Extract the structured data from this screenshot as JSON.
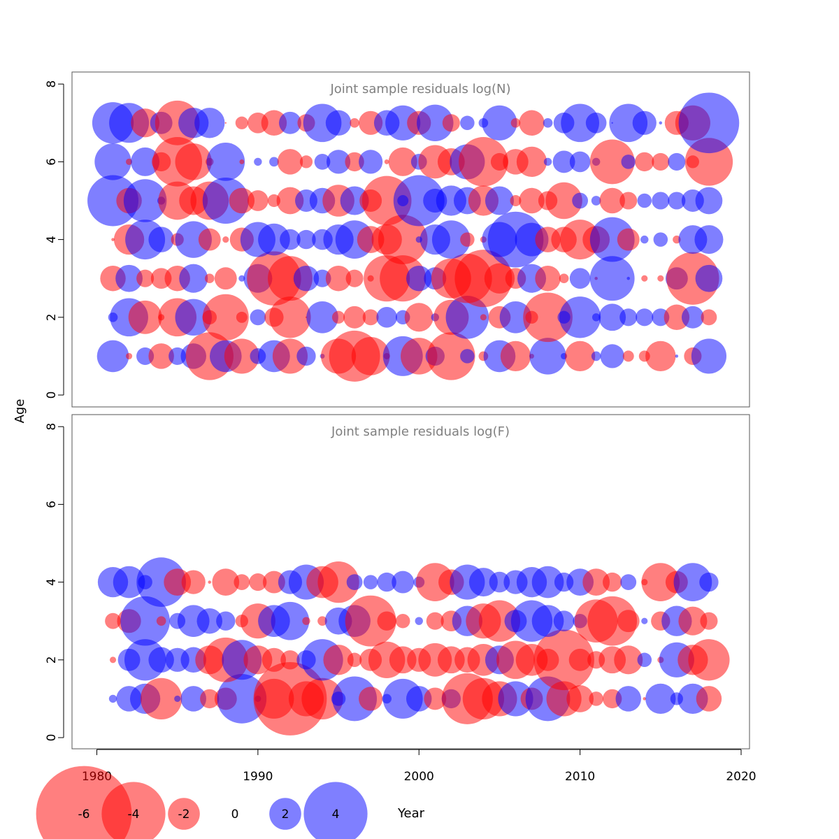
{
  "colors": {
    "negative": "#ff0000",
    "positive": "#0000ff",
    "panel_title": "#808080",
    "axis": "#000000"
  },
  "chart_data": {
    "type": "scatter",
    "xlabel": "Year",
    "ylabel": "Age",
    "xlim": [
      1978.5,
      2020.0
    ],
    "x_ticks": [
      1980,
      1990,
      2000,
      2010,
      2020
    ],
    "legend": {
      "placement": "bottom",
      "values": [
        -6,
        -4,
        -2,
        0,
        2,
        4
      ],
      "labels": [
        "-6",
        "-4",
        "-2",
        "0",
        "2",
        "4"
      ]
    },
    "panels": [
      {
        "title": "Joint sample residuals log(N)",
        "ylim": [
          -0.5,
          8.3
        ],
        "y_ticks": [
          0,
          2,
          4,
          6,
          8
        ],
        "years": [
          1981,
          1982,
          1983,
          1984,
          1985,
          1986,
          1987,
          1988,
          1989,
          1990,
          1991,
          1992,
          1993,
          1994,
          1995,
          1996,
          1997,
          1998,
          1999,
          2000,
          2001,
          2002,
          2003,
          2004,
          2005,
          2006,
          2007,
          2008,
          2009,
          2010,
          2011,
          2012,
          2013,
          2014,
          2015,
          2016,
          2017,
          2018
        ],
        "residuals": {
          "1": [
            2.0,
            -0.4,
            1.1,
            -1.6,
            1.1,
            1.6,
            -3.0,
            2.0,
            -2.2,
            1.0,
            2.0,
            -2.2,
            1.2,
            0.3,
            -2.2,
            -3.2,
            -2.4,
            -0.4,
            2.5,
            -2.3,
            1.2,
            -3.0,
            0.9,
            -0.6,
            2.0,
            -1.9,
            -0.3,
            2.3,
            0.4,
            -1.9,
            0.6,
            1.5,
            -0.7,
            -0.7,
            -1.9,
            0.2,
            -1.1,
            2.2
          ],
          "2": [
            0.6,
            2.4,
            -2.1,
            -0.4,
            -2.4,
            2.3,
            -0.9,
            -2.9,
            -0.7,
            1.0,
            -1.2,
            -2.6,
            -0.1,
            2.0,
            -0.8,
            -1.4,
            -1.0,
            1.3,
            0.9,
            -1.8,
            0.5,
            -2.2,
            2.7,
            -0.4,
            -1.4,
            2.0,
            -0.8,
            -3.1,
            0.8,
            2.6,
            0.5,
            1.7,
            1.1,
            1.1,
            1.1,
            -1.6,
            1.4,
            -1.0
          ],
          "3": [
            -1.6,
            1.7,
            -1.1,
            -1.3,
            -1.6,
            1.8,
            -0.6,
            -1.4,
            0.4,
            1.8,
            -3.4,
            -2.8,
            1.6,
            1.1,
            -1.6,
            -1.1,
            -0.4,
            -2.9,
            -2.9,
            1.6,
            1.4,
            -2.5,
            -3.1,
            -3.6,
            -1.9,
            -1.3,
            1.8,
            -1.6,
            -0.6,
            1.3,
            -0.2,
            2.8,
            0.2,
            -0.4,
            -0.4,
            1.4,
            -3.3,
            1.7
          ],
          "4": [
            -0.2,
            -1.9,
            2.5,
            1.6,
            -0.8,
            2.3,
            -1.4,
            -0.4,
            -1.5,
            2.2,
            2.0,
            1.3,
            1.2,
            1.3,
            1.9,
            2.4,
            -1.7,
            -1.9,
            -3.1,
            0.4,
            1.9,
            2.4,
            -0.9,
            -0.4,
            2.2,
            3.5,
            2.1,
            -1.6,
            -1.6,
            -2.5,
            -1.7,
            2.8,
            -1.4,
            0.5,
            0.9,
            -0.5,
            1.8,
            1.8
          ],
          "5": [
            3.2,
            -1.6,
            2.7,
            0.5,
            -2.4,
            -1.8,
            -2.4,
            2.9,
            -1.6,
            -1.3,
            -0.8,
            -1.7,
            1.4,
            1.6,
            -2.0,
            1.8,
            -1.4,
            -3.1,
            0.7,
            3.2,
            1.5,
            1.9,
            1.7,
            -1.9,
            1.8,
            -0.7,
            -1.6,
            -1.2,
            -2.3,
            1.0,
            0.6,
            -1.6,
            -1.1,
            0.9,
            1.1,
            1.1,
            1.4,
            1.7
          ],
          "6": [
            2.3,
            -0.4,
            1.8,
            -1.2,
            -3.1,
            -2.3,
            -0.5,
            2.4,
            -0.3,
            0.5,
            0.6,
            -1.6,
            -0.8,
            1.0,
            1.5,
            -1.2,
            1.5,
            -0.3,
            -1.8,
            1.0,
            -2.1,
            -1.7,
            2.2,
            -3.1,
            -1.1,
            -1.6,
            -1.9,
            0.5,
            1.4,
            1.3,
            0.5,
            -2.8,
            0.9,
            -1.2,
            -1.1,
            1.1,
            -0.8,
            -3.0
          ],
          "7": [
            2.6,
            2.5,
            -1.8,
            1.4,
            -2.8,
            1.9,
            1.9,
            -0.1,
            -0.8,
            -1.3,
            -1.6,
            1.4,
            -1.1,
            2.4,
            1.6,
            -0.6,
            -1.5,
            1.6,
            2.2,
            -1.5,
            2.3,
            -1.1,
            0.9,
            0.6,
            2.2,
            -0.6,
            -1.6,
            0.6,
            1.3,
            2.4,
            1.3,
            0.1,
            2.4,
            1.5,
            0.2,
            -1.5,
            -2.2,
            3.8
          ]
        }
      },
      {
        "title": "Joint sample residuals log(F)",
        "ylim": [
          -0.5,
          8.3
        ],
        "y_ticks": [
          0,
          2,
          4,
          6,
          8
        ],
        "years": [
          1981,
          1982,
          1983,
          1984,
          1985,
          1986,
          1987,
          1988,
          1989,
          1990,
          1991,
          1992,
          1993,
          1994,
          1995,
          1996,
          1997,
          1998,
          1999,
          2000,
          2001,
          2002,
          2003,
          2004,
          2005,
          2006,
          2007,
          2008,
          2009,
          2010,
          2011,
          2012,
          2013,
          2014,
          2015,
          2016,
          2017,
          2018
        ],
        "residuals": {
          "1": [
            0.5,
            1.6,
            1.9,
            -2.6,
            0.4,
            1.6,
            -1.2,
            -1.4,
            3.1,
            0.4,
            -2.5,
            -4.6,
            -2.2,
            -2.6,
            0.9,
            2.8,
            -1.5,
            0.6,
            2.5,
            1.6,
            -1.4,
            1.2,
            -3.2,
            -2.6,
            -2.2,
            2.2,
            -1.4,
            2.8,
            -2.2,
            -1.7,
            -0.9,
            -1.2,
            1.6,
            -0.2,
            1.9,
            0.8,
            1.9,
            -1.6
          ],
          "2": [
            -0.4,
            1.4,
            2.6,
            1.6,
            1.5,
            1.6,
            -1.8,
            -2.8,
            2.5,
            -1.8,
            -1.5,
            -1.2,
            1.2,
            2.6,
            -1.9,
            -0.9,
            -1.4,
            -2.3,
            -1.7,
            -1.5,
            -2.1,
            -1.7,
            -1.6,
            -2.0,
            1.8,
            -2.4,
            -2.0,
            -1.4,
            -3.8,
            -1.4,
            -1.1,
            -1.7,
            -1.8,
            0.9,
            -0.4,
            2.2,
            -1.9,
            -2.6
          ],
          "3": [
            -1.0,
            -1.5,
            3.1,
            -0.6,
            1.0,
            2.0,
            1.6,
            1.2,
            -0.8,
            -2.2,
            2.0,
            2.4,
            -0.5,
            -0.6,
            1.7,
            2.0,
            -3.2,
            -1.2,
            -0.9,
            0.5,
            -1.1,
            -1.3,
            1.9,
            -2.2,
            -2.6,
            1.4,
            2.6,
            2.0,
            1.3,
            0.9,
            -2.7,
            -3.1,
            -1.4,
            0.4,
            -1.2,
            1.9,
            -1.8,
            -1.1
          ],
          "4": [
            1.9,
            2.0,
            0.9,
            3.1,
            -1.7,
            -1.5,
            -0.2,
            -1.7,
            -1.0,
            -1.1,
            -1.4,
            1.5,
            2.2,
            -2.0,
            -2.6,
            1.0,
            0.9,
            1.2,
            1.4,
            0.7,
            -2.4,
            -1.6,
            2.2,
            1.8,
            1.3,
            1.5,
            1.9,
            2.0,
            1.2,
            1.7,
            -1.7,
            -1.2,
            1.0,
            -0.4,
            -2.4,
            -1.4,
            2.4,
            1.2
          ]
        }
      }
    ]
  }
}
